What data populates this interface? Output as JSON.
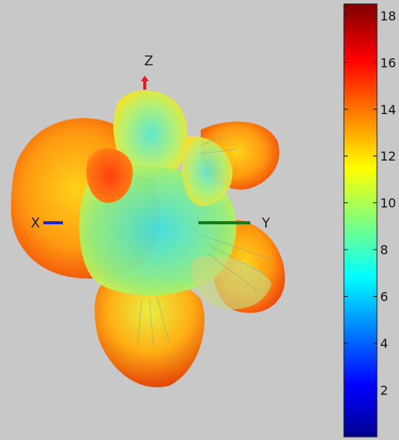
{
  "chart_data": {
    "type": "3d-radiation-pattern",
    "title": "",
    "axes": [
      {
        "name": "X",
        "label": "X",
        "color": "#1a2bd6"
      },
      {
        "name": "Y",
        "label": "Y",
        "color": "#1a7a1a"
      },
      {
        "name": "Z",
        "label": "Z",
        "color": "#e02020"
      }
    ],
    "colorbar": {
      "colormap": "jet",
      "range": [
        0,
        18.5
      ],
      "ticks": [
        2,
        4,
        6,
        8,
        10,
        12,
        14,
        16,
        18
      ],
      "tick_labels": [
        "2",
        "4",
        "6",
        "8",
        "10",
        "12",
        "14",
        "16",
        "18"
      ]
    },
    "grid": false
  }
}
